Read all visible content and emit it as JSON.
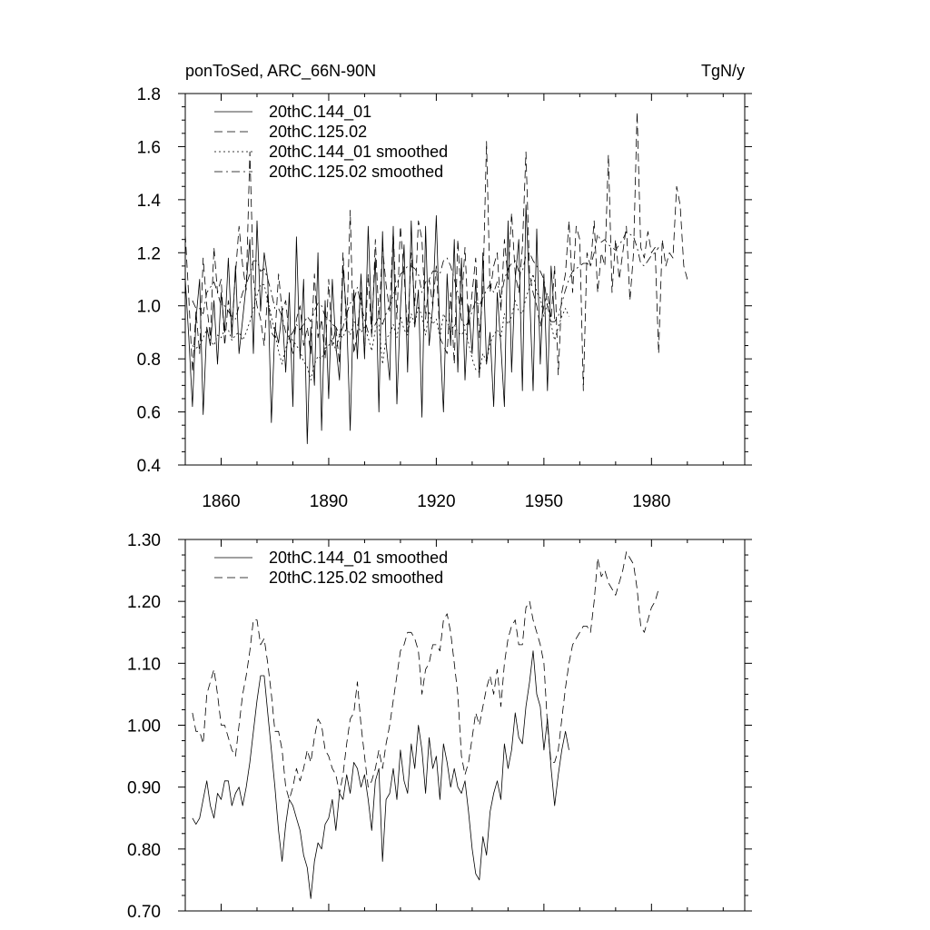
{
  "chart_data": [
    {
      "type": "line",
      "title_left": "ponToSed, ARC_66N-90N",
      "title_right": "TgN/y",
      "xlabel": "",
      "ylabel": "",
      "xlim": [
        1850,
        2006
      ],
      "ylim": [
        0.4,
        1.8
      ],
      "x_ticks": [
        1860,
        1890,
        1920,
        1950,
        1980
      ],
      "x_tick_labels": [
        "1860",
        "1890",
        "1920",
        "1950",
        "1980"
      ],
      "y_ticks": [
        0.4,
        0.6,
        0.8,
        1.0,
        1.2,
        1.4,
        1.6,
        1.8
      ],
      "y_tick_labels": [
        "0.4",
        "0.6",
        "0.8",
        "1.0",
        "1.2",
        "1.4",
        "1.6",
        "1.8"
      ],
      "legend_position": "top-left",
      "series": [
        {
          "name": "20thC.144_01",
          "style": "solid",
          "x_start": 1850,
          "values": [
            1.1,
            0.88,
            0.62,
            0.95,
            1.1,
            0.59,
            0.92,
            0.85,
            1.02,
            0.78,
            1.05,
            0.9,
            1.18,
            0.88,
            1.15,
            0.82,
            0.95,
            1.08,
            1.25,
            0.82,
            1.32,
            0.98,
            1.2,
            1.1,
            0.56,
            0.92,
            0.86,
            0.98,
            0.75,
            1.05,
            0.62,
            1.26,
            0.8,
            1.1,
            0.48,
            0.92,
            0.7,
            1.2,
            0.53,
            1.02,
            0.65,
            1.1,
            0.85,
            0.72,
            1.15,
            0.96,
            0.53,
            1.06,
            0.8,
            1.12,
            0.8,
            1.3,
            0.92,
            1.18,
            0.6,
            1.28,
            0.86,
            0.72,
            1.3,
            0.63,
            0.99,
            1.23,
            0.75,
            1.32,
            0.92,
            1.06,
            0.58,
            1.3,
            0.85,
            1.0,
            1.34,
            0.88,
            0.6,
            1.12,
            0.85,
            1.25,
            0.75,
            1.18,
            0.72,
            1.0,
            0.82,
            1.1,
            0.73,
            1.2,
            0.78,
            0.9,
            0.62,
            1.05,
            0.85,
            0.62,
            1.32,
            0.75,
            1.1,
            1.25,
            0.68,
            1.38,
            1.05,
            0.68,
            1.29,
            0.78,
            1.12,
            0.68,
            1.15,
            0.95
          ]
        },
        {
          "name": "20thC.125.02",
          "style": "dashed",
          "x_start": 1850,
          "values": [
            1.27,
            1.03,
            0.75,
            0.98,
            0.82,
            1.18,
            1.0,
            0.88,
            1.22,
            1.05,
            1.1,
            0.85,
            1.02,
            0.92,
            1.12,
            1.3,
            1.15,
            1.06,
            1.58,
            1.1,
            1.0,
            0.95,
            0.85,
            1.05,
            0.9,
            0.88,
            1.12,
            0.98,
            1.02,
            0.88,
            0.82,
            0.95,
            1.0,
            0.85,
            0.92,
            0.82,
            1.12,
            0.88,
            0.95,
            0.8,
            1.1,
            0.85,
            0.92,
            0.78,
            1.2,
            0.9,
            1.36,
            0.82,
            0.9,
            1.05,
            0.82,
            1.12,
            0.88,
            1.25,
            0.95,
            1.22,
            1.08,
            0.98,
            1.28,
            0.95,
            1.3,
            1.12,
            0.9,
            1.2,
            1.0,
            1.32,
            1.25,
            0.95,
            1.1,
            1.0,
            1.15,
            0.88,
            0.85,
            0.82,
            1.05,
            0.78,
            1.25,
            1.0,
            1.22,
            0.92,
            1.05,
            1.18,
            0.88,
            1.05,
            1.62,
            1.05,
            1.15,
            1.2,
            0.98,
            1.25,
            1.1,
            1.35,
            1.12,
            1.05,
            1.22,
            1.58,
            1.12,
            1.05,
            1.0,
            0.92,
            1.0,
            1.05,
            0.95,
            1.15,
            0.74,
            1.05,
            1.12,
            1.32,
            1.05,
            1.3,
            1.25,
            0.68,
            1.2,
            1.15,
            1.32,
            1.05,
            1.2,
            1.15,
            1.57,
            1.05,
            1.25,
            1.1,
            1.2,
            1.3,
            1.02,
            1.2,
            1.73,
            1.22,
            1.18,
            1.28,
            1.2,
            1.22,
            0.82,
            1.25,
            1.15,
            1.2,
            1.18,
            1.45,
            1.38,
            1.15,
            1.1
          ]
        },
        {
          "name": "20thC.144_01 smoothed",
          "style": "dotted",
          "x_start": 1852,
          "values": [
            0.85,
            0.84,
            0.85,
            0.88,
            0.91,
            0.87,
            0.85,
            0.89,
            0.88,
            0.91,
            0.91,
            0.87,
            0.89,
            0.9,
            0.87,
            0.9,
            0.94,
            0.99,
            1.04,
            1.08,
            1.08,
            1.02,
            0.96,
            0.9,
            0.83,
            0.78,
            0.84,
            0.88,
            0.87,
            0.85,
            0.83,
            0.79,
            0.77,
            0.72,
            0.78,
            0.81,
            0.8,
            0.84,
            0.85,
            0.88,
            0.83,
            0.89,
            0.88,
            0.92,
            0.89,
            0.94,
            0.93,
            0.9,
            0.92,
            0.88,
            0.83,
            0.91,
            0.93,
            0.78,
            0.88,
            0.89,
            0.93,
            0.88,
            0.96,
            0.91,
            0.89,
            0.97,
            0.93,
            1.0,
            0.96,
            0.89,
            0.98,
            0.93,
            0.95,
            0.88,
            0.97,
            0.94,
            0.9,
            0.93,
            0.9,
            0.89,
            0.91,
            0.86,
            0.8,
            0.76,
            0.75,
            0.82,
            0.79,
            0.86,
            0.89,
            0.91,
            0.88,
            0.97,
            0.93,
            0.96,
            1.02,
            0.98,
            0.97,
            1.03,
            1.07,
            1.12,
            1.05,
            1.03,
            0.96,
            1.01,
            0.93,
            0.87,
            0.92,
            0.96,
            0.99,
            0.96
          ]
        },
        {
          "name": "20thC.125.02 smoothed",
          "style": "dashdot",
          "x_start": 1852,
          "values": [
            1.02,
            0.99,
            0.99,
            0.97,
            1.05,
            1.07,
            1.09,
            1.05,
            1.0,
            1.0,
            0.98,
            0.96,
            0.95,
            1.0,
            1.05,
            1.08,
            1.12,
            1.17,
            1.17,
            1.13,
            1.14,
            1.1,
            1.05,
            0.99,
            0.99,
            0.96,
            0.9,
            0.88,
            0.9,
            0.93,
            0.91,
            0.93,
            0.96,
            0.94,
            0.98,
            1.01,
            1.0,
            0.96,
            0.95,
            0.93,
            0.92,
            0.89,
            0.92,
            0.97,
            1.01,
            1.02,
            1.07,
            1.0,
            0.95,
            0.9,
            0.91,
            0.93,
            0.96,
            0.93,
            0.97,
            1.0,
            1.04,
            1.08,
            1.12,
            1.13,
            1.15,
            1.15,
            1.14,
            1.12,
            1.05,
            1.09,
            1.1,
            1.13,
            1.13,
            1.12,
            1.17,
            1.18,
            1.15,
            1.1,
            1.05,
            0.95,
            0.92,
            0.94,
            0.98,
            1.02,
            1.0,
            1.03,
            1.06,
            1.08,
            1.05,
            1.09,
            1.03,
            1.1,
            1.14,
            1.16,
            1.17,
            1.13,
            1.13,
            1.19,
            1.2,
            1.17,
            1.15,
            1.13,
            1.1,
            1.0,
            0.94,
            0.94,
            0.96,
            1.01,
            1.06,
            1.1,
            1.13,
            1.14,
            1.15,
            1.16,
            1.16,
            1.15,
            1.2,
            1.27,
            1.24,
            1.25,
            1.23,
            1.22,
            1.21,
            1.23,
            1.25,
            1.28,
            1.27,
            1.26,
            1.22,
            1.16,
            1.15,
            1.17,
            1.19,
            1.2,
            1.22
          ]
        }
      ]
    },
    {
      "type": "line",
      "title_left": "",
      "title_right": "",
      "xlabel": "",
      "ylabel": "",
      "xlim": [
        1850,
        2006
      ],
      "ylim": [
        0.7,
        1.3
      ],
      "x_ticks": [
        1860,
        1890,
        1920,
        1950,
        1980
      ],
      "x_tick_labels": [],
      "y_ticks": [
        0.7,
        0.8,
        0.9,
        1.0,
        1.1,
        1.2,
        1.3
      ],
      "y_tick_labels": [
        "0.70",
        "0.80",
        "0.90",
        "1.00",
        "1.10",
        "1.20",
        "1.30"
      ],
      "legend_position": "top-left",
      "series": [
        {
          "name": "20thC.144_01 smoothed",
          "style": "solid",
          "x_start": 1852,
          "values": [
            0.85,
            0.84,
            0.85,
            0.88,
            0.91,
            0.87,
            0.85,
            0.89,
            0.88,
            0.91,
            0.91,
            0.87,
            0.89,
            0.9,
            0.87,
            0.9,
            0.94,
            0.99,
            1.04,
            1.08,
            1.08,
            1.02,
            0.96,
            0.9,
            0.83,
            0.78,
            0.84,
            0.88,
            0.87,
            0.85,
            0.83,
            0.79,
            0.77,
            0.72,
            0.78,
            0.81,
            0.8,
            0.84,
            0.85,
            0.88,
            0.83,
            0.89,
            0.88,
            0.92,
            0.89,
            0.94,
            0.93,
            0.9,
            0.92,
            0.88,
            0.83,
            0.91,
            0.93,
            0.78,
            0.88,
            0.89,
            0.93,
            0.88,
            0.96,
            0.91,
            0.89,
            0.97,
            0.93,
            1.0,
            0.96,
            0.89,
            0.98,
            0.93,
            0.95,
            0.88,
            0.97,
            0.94,
            0.9,
            0.93,
            0.9,
            0.89,
            0.91,
            0.86,
            0.8,
            0.76,
            0.75,
            0.82,
            0.79,
            0.86,
            0.89,
            0.91,
            0.88,
            0.97,
            0.93,
            0.96,
            1.02,
            0.98,
            0.97,
            1.03,
            1.07,
            1.12,
            1.05,
            1.03,
            0.96,
            1.01,
            0.93,
            0.87,
            0.92,
            0.96,
            0.99,
            0.96
          ]
        },
        {
          "name": "20thC.125.02 smoothed",
          "style": "dashed",
          "x_start": 1852,
          "values": [
            1.02,
            0.99,
            0.99,
            0.97,
            1.05,
            1.07,
            1.09,
            1.05,
            1.0,
            1.0,
            0.98,
            0.96,
            0.95,
            1.0,
            1.05,
            1.08,
            1.12,
            1.17,
            1.17,
            1.13,
            1.14,
            1.1,
            1.05,
            0.99,
            0.99,
            0.96,
            0.9,
            0.88,
            0.9,
            0.93,
            0.91,
            0.93,
            0.96,
            0.94,
            0.98,
            1.01,
            1.0,
            0.96,
            0.95,
            0.93,
            0.92,
            0.89,
            0.92,
            0.97,
            1.01,
            1.02,
            1.07,
            1.0,
            0.95,
            0.9,
            0.91,
            0.93,
            0.96,
            0.93,
            0.97,
            1.0,
            1.04,
            1.08,
            1.12,
            1.13,
            1.15,
            1.15,
            1.14,
            1.12,
            1.05,
            1.09,
            1.1,
            1.13,
            1.13,
            1.12,
            1.17,
            1.18,
            1.15,
            1.1,
            1.05,
            0.95,
            0.92,
            0.94,
            0.98,
            1.02,
            1.0,
            1.03,
            1.06,
            1.08,
            1.05,
            1.09,
            1.03,
            1.1,
            1.14,
            1.16,
            1.17,
            1.13,
            1.13,
            1.19,
            1.2,
            1.17,
            1.15,
            1.13,
            1.1,
            1.0,
            0.94,
            0.94,
            0.96,
            1.01,
            1.06,
            1.1,
            1.13,
            1.14,
            1.15,
            1.16,
            1.16,
            1.15,
            1.2,
            1.27,
            1.24,
            1.25,
            1.23,
            1.22,
            1.21,
            1.23,
            1.25,
            1.28,
            1.27,
            1.26,
            1.22,
            1.16,
            1.15,
            1.17,
            1.19,
            1.2,
            1.22
          ]
        }
      ]
    }
  ]
}
